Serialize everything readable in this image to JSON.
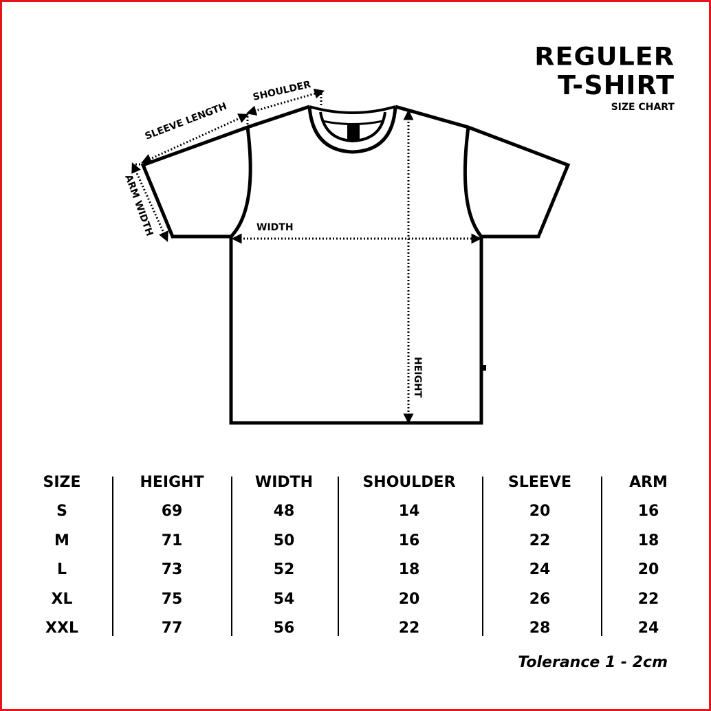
{
  "title": {
    "line1": "REGULER",
    "line2": "T-SHIRT",
    "subtitle": "SIZE CHART"
  },
  "diagram_labels": {
    "shoulder": "SHOULDER",
    "sleeve_length": "SLEEVE LENGTH",
    "arm_width": "ARM WIDTH",
    "width": "WIDTH",
    "height": "HEIGHT"
  },
  "colors": {
    "border": "#e8141b",
    "ink": "#000000"
  },
  "table": {
    "columns": [
      "SIZE",
      "HEIGHT",
      "WIDTH",
      "SHOULDER",
      "SLEEVE",
      "ARM"
    ],
    "rows": [
      [
        "S",
        "69",
        "48",
        "14",
        "20",
        "16"
      ],
      [
        "M",
        "71",
        "50",
        "16",
        "22",
        "18"
      ],
      [
        "L",
        "73",
        "52",
        "18",
        "24",
        "20"
      ],
      [
        "XL",
        "75",
        "54",
        "20",
        "26",
        "22"
      ],
      [
        "XXL",
        "77",
        "56",
        "22",
        "28",
        "24"
      ]
    ]
  },
  "tolerance": "Tolerance 1 - 2cm"
}
